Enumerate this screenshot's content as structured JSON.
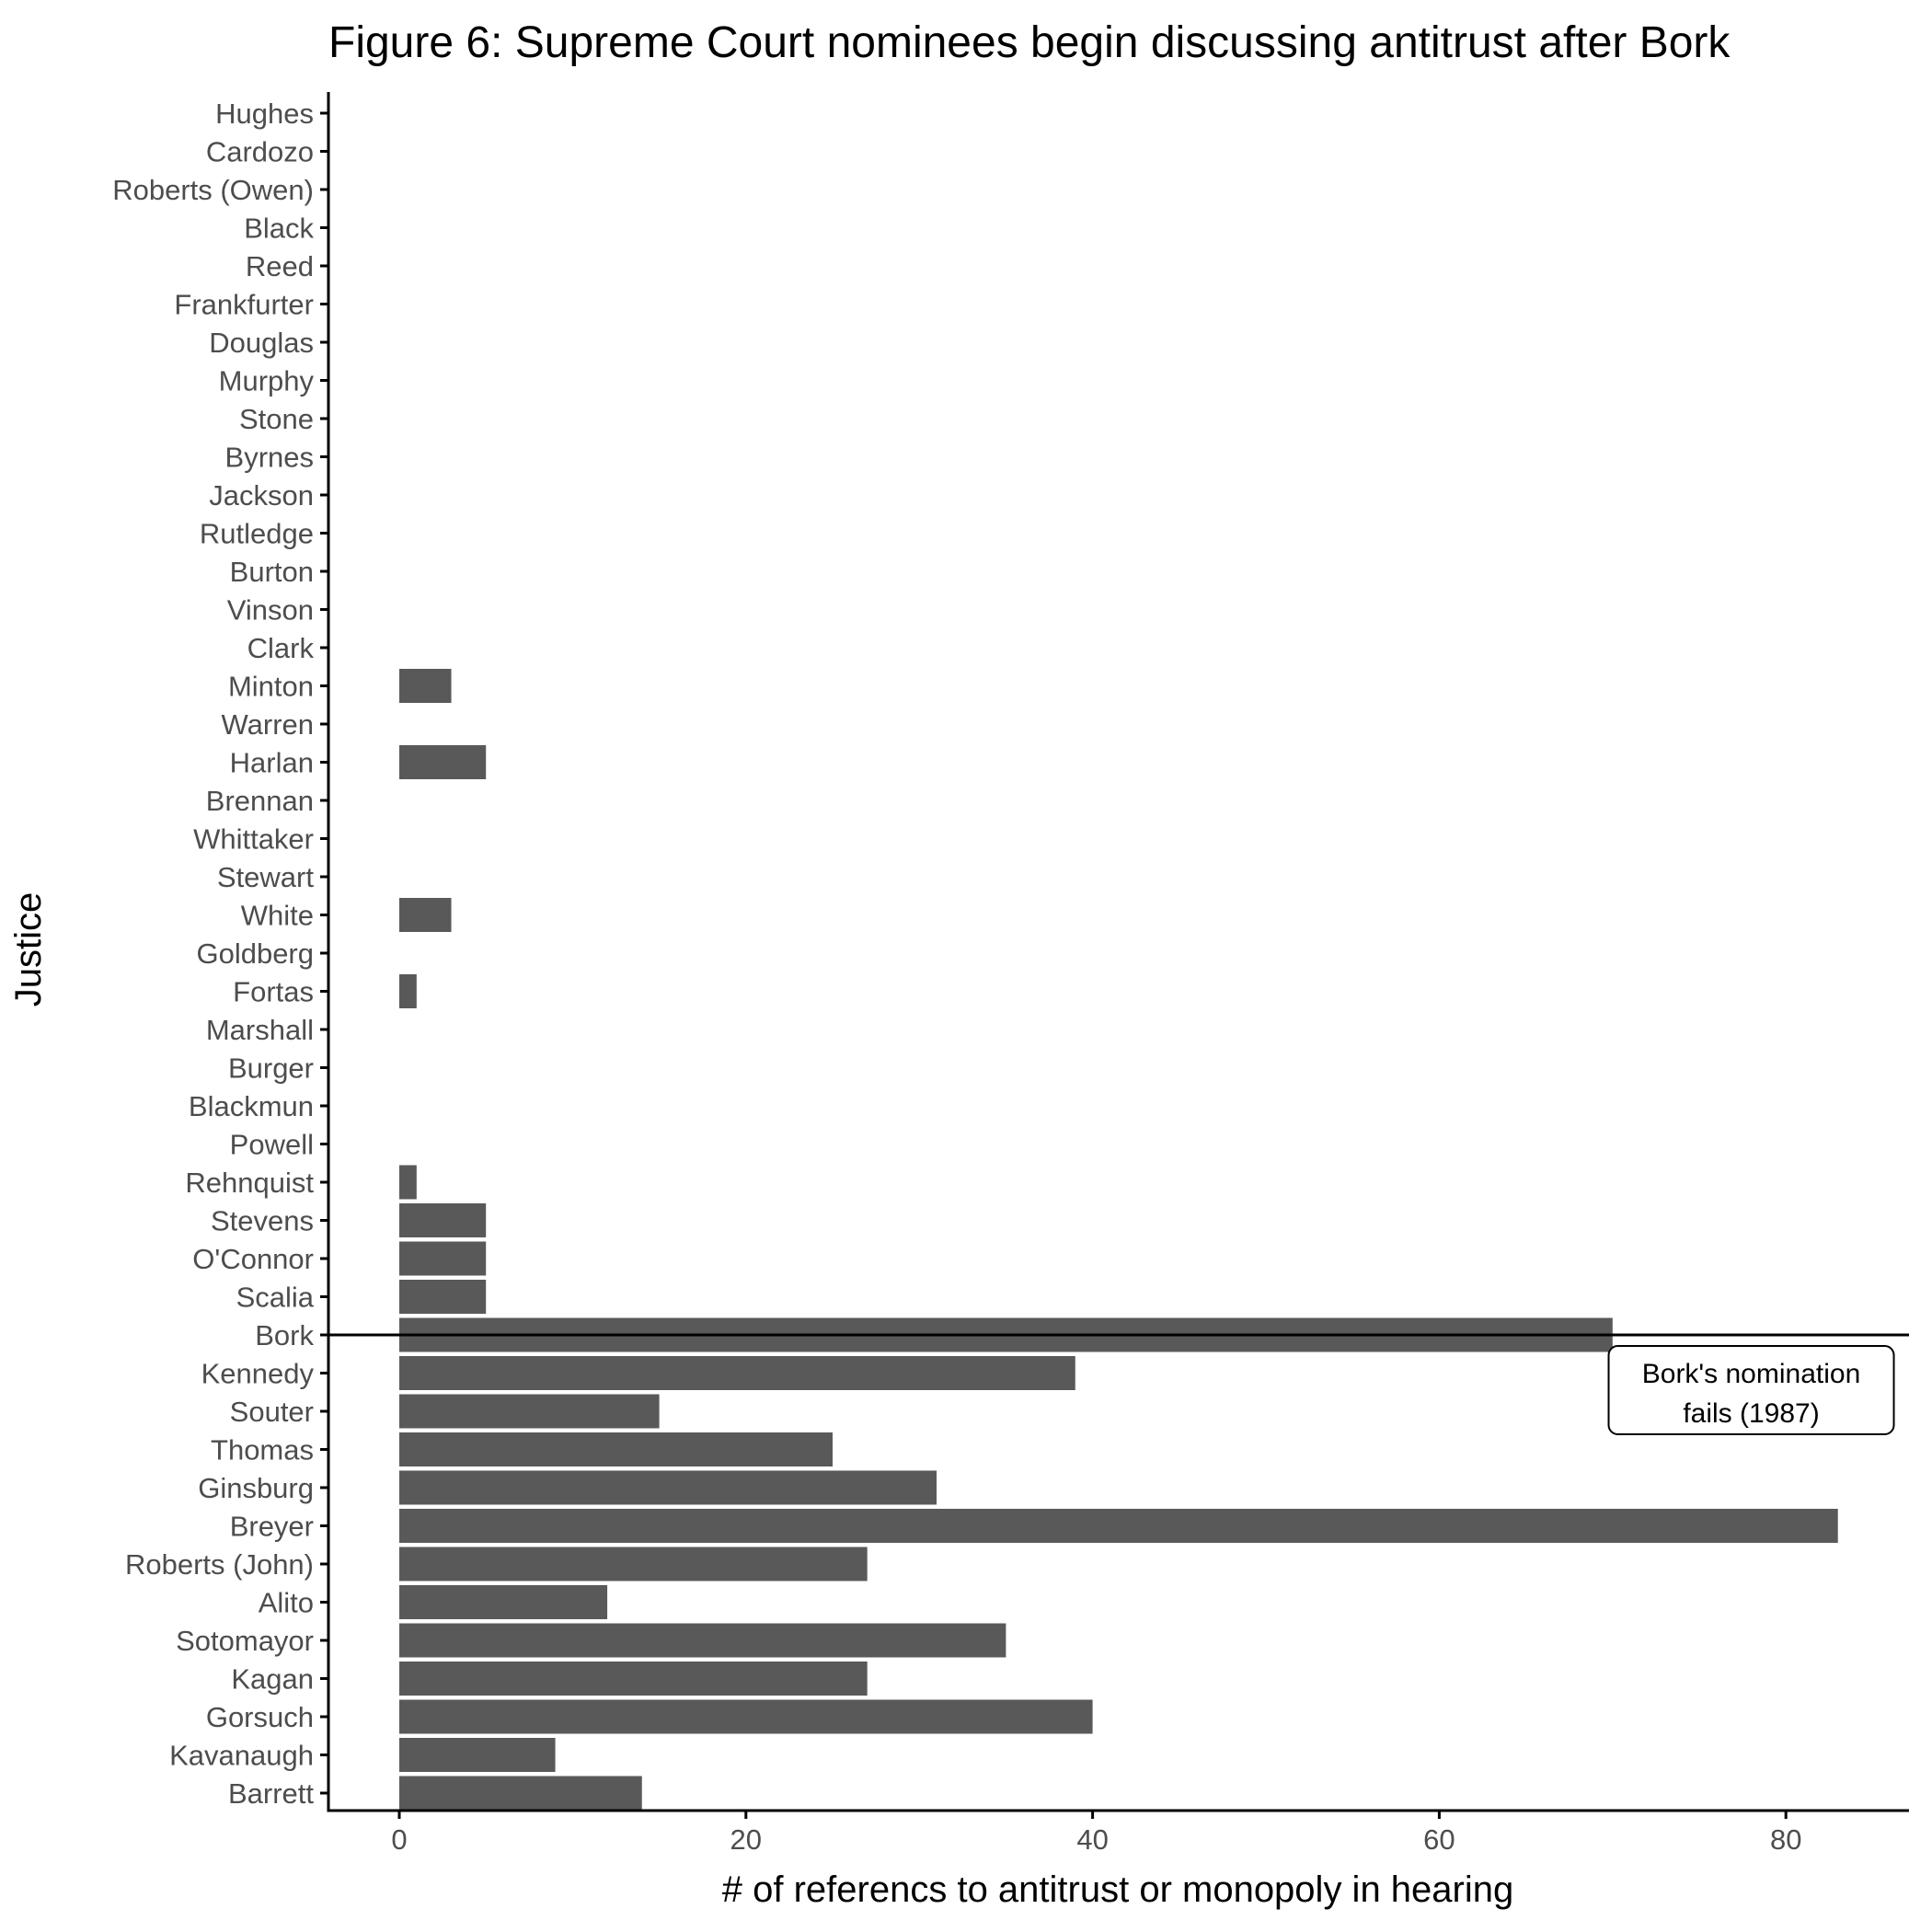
{
  "chart_data": {
    "type": "bar",
    "orientation": "horizontal",
    "title": "Figure 6: Supreme Court nominees begin discussing antitrust after Bork",
    "xlabel": "# of referencs to antitrust or monopoly in hearing",
    "ylabel": "Justice",
    "categories": [
      "Hughes",
      "Cardozo",
      "Roberts (Owen)",
      "Black",
      "Reed",
      "Frankfurter",
      "Douglas",
      "Murphy",
      "Stone",
      "Byrnes",
      "Jackson",
      "Rutledge",
      "Burton",
      "Vinson",
      "Clark",
      "Minton",
      "Warren",
      "Harlan",
      "Brennan",
      "Whittaker",
      "Stewart",
      "White",
      "Goldberg",
      "Fortas",
      "Marshall",
      "Burger",
      "Blackmun",
      "Powell",
      "Rehnquist",
      "Stevens",
      "O'Connor",
      "Scalia",
      "Bork",
      "Kennedy",
      "Souter",
      "Thomas",
      "Ginsburg",
      "Breyer",
      "Roberts (John)",
      "Alito",
      "Sotomayor",
      "Kagan",
      "Gorsuch",
      "Kavanaugh",
      "Barrett"
    ],
    "values": [
      0,
      0,
      0,
      0,
      0,
      0,
      0,
      0,
      0,
      0,
      0,
      0,
      0,
      0,
      0,
      3,
      0,
      5,
      0,
      0,
      0,
      3,
      0,
      1,
      0,
      0,
      0,
      0,
      1,
      5,
      5,
      5,
      70,
      39,
      15,
      25,
      31,
      83,
      27,
      12,
      35,
      27,
      40,
      9,
      14
    ],
    "xticks": [
      0,
      20,
      40,
      60,
      80
    ],
    "xticklabels": [
      "0",
      "20",
      "40",
      "60",
      "80"
    ],
    "xlim": [
      -4.1,
      87.1
    ],
    "bar_color": "#595959",
    "reference_line": {
      "category": "Bork",
      "color": "#000000"
    },
    "annotation": {
      "lines": [
        "Bork's nomination",
        "fails (1987)"
      ],
      "anchor_x": 78,
      "anchor_category": "Bork"
    },
    "grid": false,
    "legend": "none"
  }
}
